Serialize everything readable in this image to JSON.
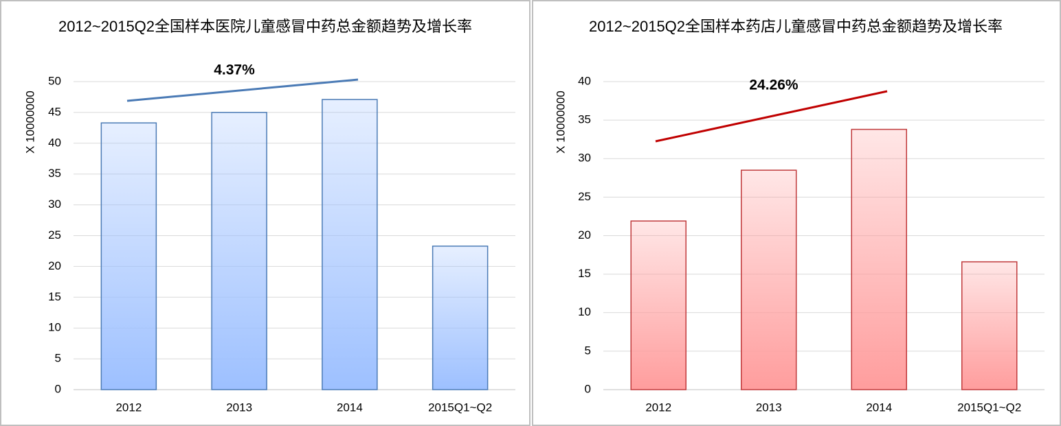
{
  "chart_data": [
    {
      "type": "bar",
      "title": "2012~2015Q2全国样本医院儿童感冒中药总金额趋势及增长率",
      "ylabel": "X 10000000",
      "categories": [
        "2012",
        "2013",
        "2014",
        "2015Q1~Q2"
      ],
      "values": [
        43.3,
        45.0,
        47.1,
        23.3
      ],
      "color": "#9dc0ff",
      "edge_color": "#4a7ab5",
      "ylim": [
        0,
        50
      ],
      "yticks": [
        0,
        5,
        10,
        15,
        20,
        25,
        30,
        35,
        40,
        45,
        50
      ],
      "grid": true,
      "annotation": {
        "text": "4.37%",
        "color": "#2e5a8a",
        "line_color": "#4a7ab5"
      }
    },
    {
      "type": "bar",
      "title": "2012~2015Q2全国样本药店儿童感冒中药总金额趋势及增长率",
      "ylabel": "X 10000000",
      "categories": [
        "2012",
        "2013",
        "2014",
        "2015Q1~Q2"
      ],
      "values": [
        21.9,
        28.5,
        33.8,
        16.6
      ],
      "color": "#ff9d9d",
      "edge_color": "#c0393b",
      "ylim": [
        0,
        40
      ],
      "yticks": [
        0,
        5,
        10,
        15,
        20,
        25,
        30,
        35,
        40
      ],
      "grid": true,
      "annotation": {
        "text": "24.26%",
        "color": "#c00000",
        "line_color": "#c00000"
      }
    }
  ]
}
